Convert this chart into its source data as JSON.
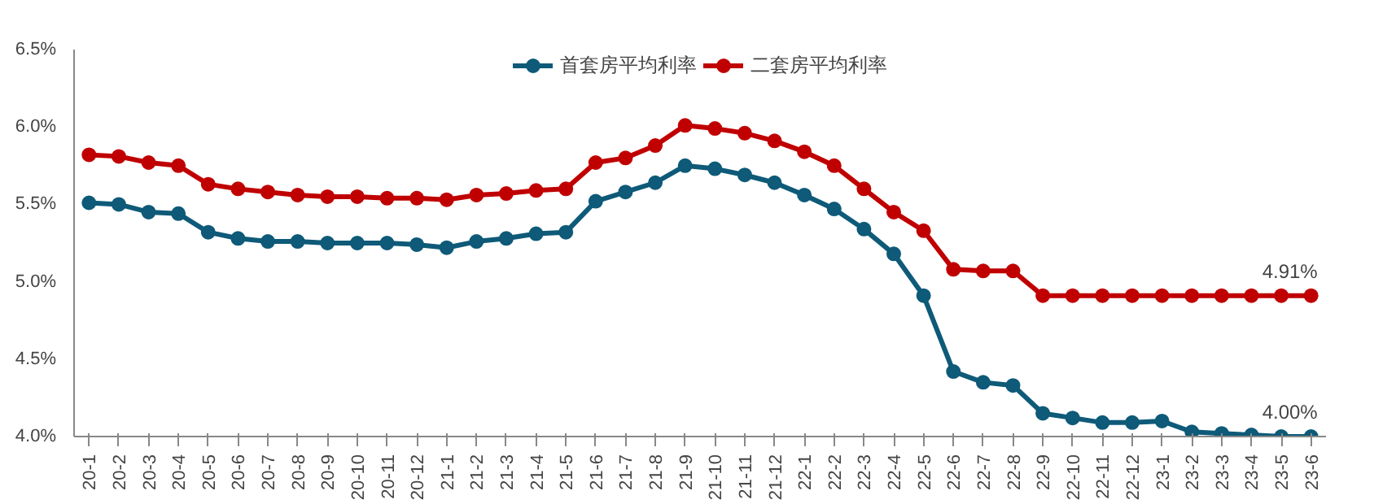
{
  "chart_data": {
    "type": "line",
    "categories": [
      "20-1",
      "20-2",
      "20-3",
      "20-4",
      "20-5",
      "20-6",
      "20-7",
      "20-8",
      "20-9",
      "20-10",
      "20-11",
      "20-12",
      "21-1",
      "21-2",
      "21-3",
      "21-4",
      "21-5",
      "21-6",
      "21-7",
      "21-8",
      "21-9",
      "21-10",
      "21-11",
      "21-12",
      "22-1",
      "22-2",
      "22-3",
      "22-4",
      "22-5",
      "22-6",
      "22-7",
      "22-8",
      "22-9",
      "22-10",
      "22-11",
      "22-12",
      "23-1",
      "23-2",
      "23-3",
      "23-4",
      "23-5",
      "23-6"
    ],
    "series": [
      {
        "name": "首套房平均利率",
        "color": "#0e5a78",
        "values": [
          5.51,
          5.5,
          5.45,
          5.44,
          5.32,
          5.28,
          5.26,
          5.26,
          5.25,
          5.25,
          5.25,
          5.24,
          5.22,
          5.26,
          5.28,
          5.31,
          5.32,
          5.52,
          5.58,
          5.64,
          5.75,
          5.73,
          5.69,
          5.64,
          5.56,
          5.47,
          5.34,
          5.18,
          4.91,
          4.42,
          4.35,
          4.33,
          4.15,
          4.12,
          4.09,
          4.09,
          4.1,
          4.03,
          4.02,
          4.01,
          4.0,
          4.0
        ],
        "value_labels": [
          null,
          null,
          null,
          null,
          null,
          null,
          null,
          null,
          null,
          null,
          null,
          null,
          null,
          null,
          null,
          null,
          null,
          null,
          null,
          null,
          null,
          null,
          null,
          null,
          null,
          null,
          null,
          null,
          null,
          null,
          null,
          null,
          null,
          null,
          null,
          null,
          null,
          null,
          null,
          null,
          null,
          "4.00%"
        ]
      },
      {
        "name": "二套房平均利率",
        "color": "#c00000",
        "values": [
          5.82,
          5.81,
          5.77,
          5.75,
          5.63,
          5.6,
          5.58,
          5.56,
          5.55,
          5.55,
          5.54,
          5.54,
          5.53,
          5.56,
          5.57,
          5.59,
          5.6,
          5.77,
          5.8,
          5.88,
          6.01,
          5.99,
          5.96,
          5.91,
          5.84,
          5.75,
          5.6,
          5.45,
          5.33,
          5.08,
          5.07,
          5.07,
          4.91,
          4.91,
          4.91,
          4.91,
          4.91,
          4.91,
          4.91,
          4.91,
          4.91,
          4.91
        ],
        "value_labels": [
          null,
          null,
          null,
          null,
          null,
          null,
          null,
          null,
          null,
          null,
          null,
          null,
          null,
          null,
          null,
          null,
          null,
          null,
          null,
          null,
          null,
          null,
          null,
          null,
          null,
          null,
          null,
          null,
          null,
          null,
          null,
          null,
          null,
          null,
          null,
          null,
          null,
          null,
          null,
          null,
          null,
          "4.91%"
        ]
      }
    ],
    "ylim": [
      4.0,
      6.5
    ],
    "yticks": [
      {
        "value": 4.0,
        "label": "4.0%"
      },
      {
        "value": 4.5,
        "label": "4.5%"
      },
      {
        "value": 5.0,
        "label": "5.0%"
      },
      {
        "value": 5.5,
        "label": "5.5%"
      },
      {
        "value": 6.0,
        "label": "6.0%"
      },
      {
        "value": 6.5,
        "label": "6.5%"
      }
    ],
    "grid": false,
    "legend": "top",
    "marker": "circle",
    "line_style": "solid"
  }
}
